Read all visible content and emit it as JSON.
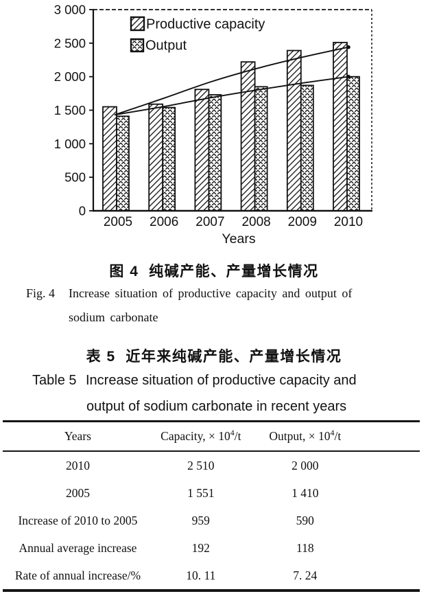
{
  "chart_data": {
    "type": "bar",
    "categories": [
      "2005",
      "2006",
      "2007",
      "2008",
      "2009",
      "2010"
    ],
    "series": [
      {
        "name": "Productive capacity",
        "hatch": "diagonal",
        "values": [
          1551,
          1590,
          1810,
          2220,
          2390,
          2510
        ]
      },
      {
        "name": "Output",
        "hatch": "crosshatch",
        "values": [
          1410,
          1540,
          1730,
          1850,
          1870,
          2000
        ]
      }
    ],
    "trend_lines": [
      {
        "name": "Productive capacity trend",
        "values": [
          1430,
          1680,
          1920,
          2120,
          2290,
          2440
        ]
      },
      {
        "name": "Output trend",
        "values": [
          1430,
          1555,
          1685,
          1800,
          1905,
          2000
        ]
      }
    ],
    "title": "",
    "xlabel": "Years",
    "ylabel": "",
    "ylim": [
      0,
      3000
    ],
    "ytick_step": 500,
    "ytick_labels": [
      "0",
      "500",
      "1 000",
      "1 500",
      "2 000",
      "2 500",
      "3 000"
    ],
    "grid": false,
    "legend_position": "top-left-inside"
  },
  "figure_caption": {
    "zh": "图 4  纯碱产能、产量增长情况",
    "en_label": "Fig. 4",
    "en_line1": "Increase situation of productive capacity and output of",
    "en_line2": "sodium carbonate"
  },
  "table_caption": {
    "zh": "表 5  近年来纯碱产能、产量增长情况",
    "en_label": "Table 5",
    "en_line1": "Increase situation of productive capacity and",
    "en_line2": "output of sodium carbonate in recent years"
  },
  "table": {
    "columns": [
      {
        "label": "Years"
      },
      {
        "pre": "Capacity, × 10",
        "sup": "4",
        "post": "/t"
      },
      {
        "pre": "Output, × 10",
        "sup": "4",
        "post": "/t"
      }
    ],
    "rows": [
      {
        "label": "2010",
        "capacity": "2 510",
        "output": "2 000"
      },
      {
        "label": "2005",
        "capacity": "1 551",
        "output": "1 410"
      },
      {
        "label": "Increase of 2010 to 2005",
        "capacity": "959",
        "output": "590"
      },
      {
        "label": "Annual average increase",
        "capacity": "192",
        "output": "118"
      },
      {
        "label": "Rate of annual increase/%",
        "capacity": "10. 11",
        "output": "7. 24"
      }
    ]
  },
  "colors": {
    "ink": "#111111",
    "paper": "#ffffff"
  }
}
